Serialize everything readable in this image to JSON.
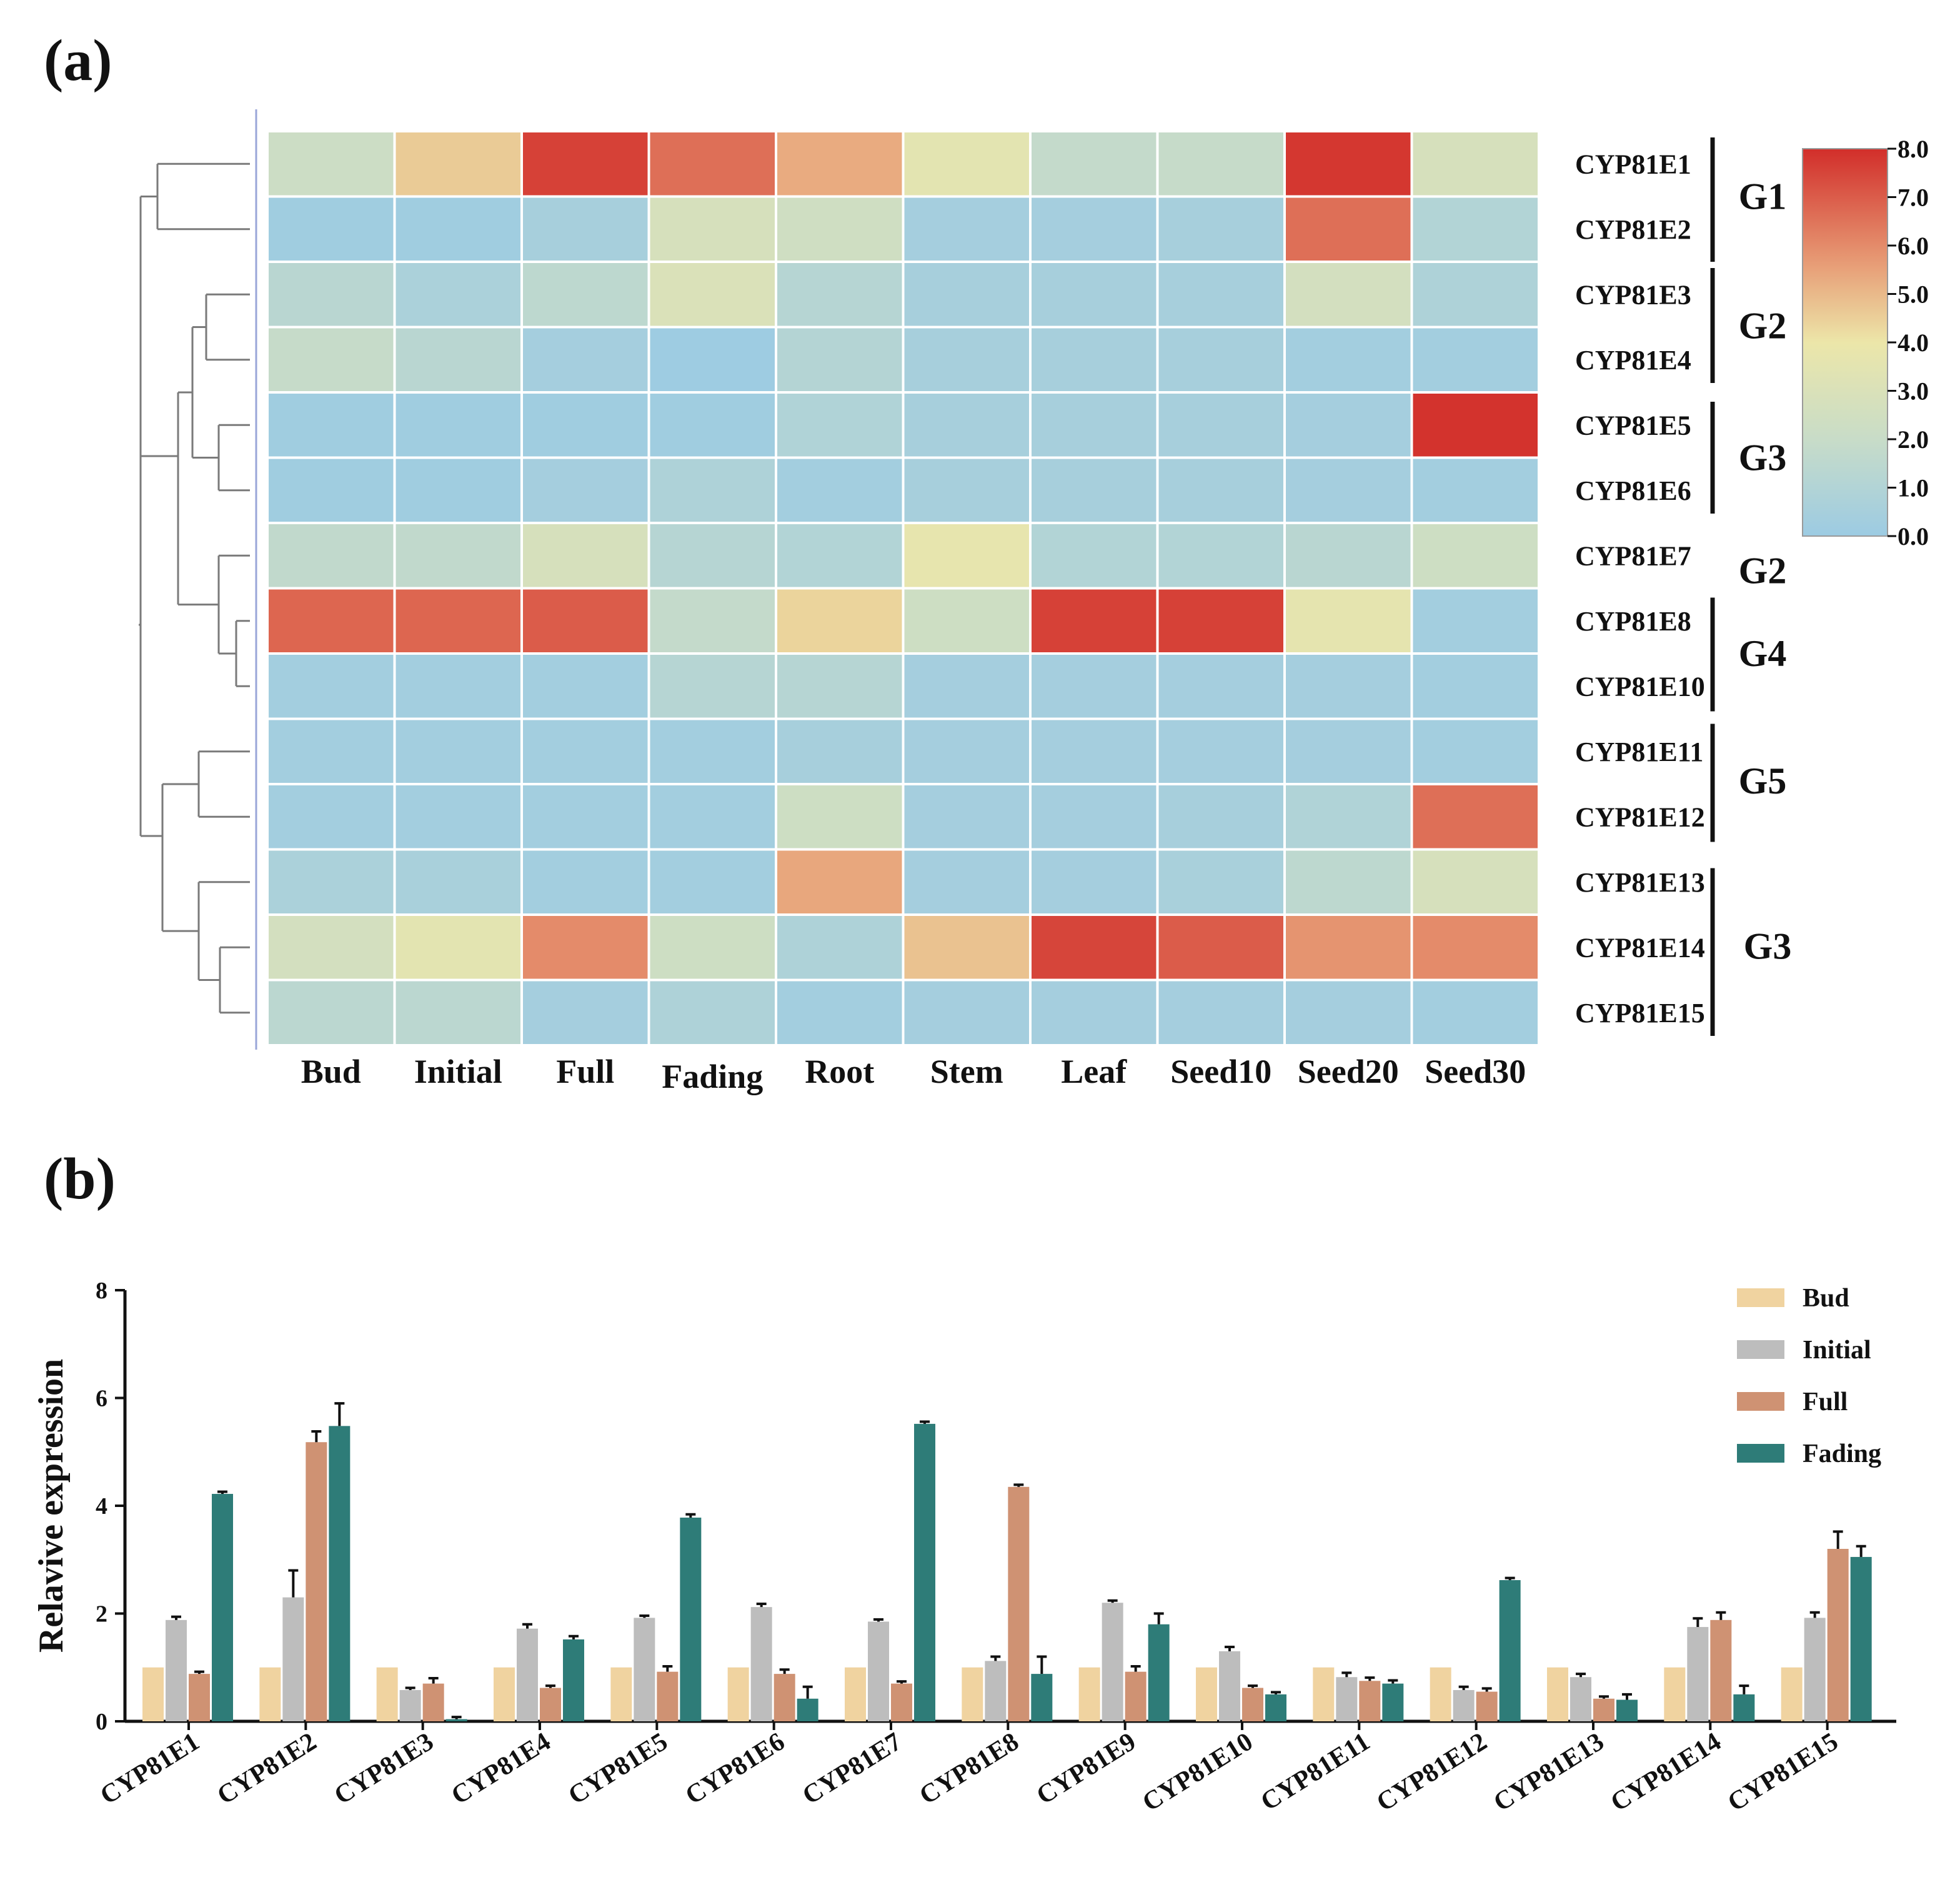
{
  "figure": {
    "panel_a_label": "(a)",
    "panel_b_label": "(b)"
  },
  "colors": {
    "bud": "#f0d3a0",
    "initial": "#bdbdbd",
    "full": "#cf9273",
    "fading": "#2e7c78",
    "dendro": "#7a7a7a",
    "heat_low": "#9ccbe3",
    "heat_mid": "#ece6a9",
    "heat_high": "#d22e2a"
  },
  "chart_data": [
    {
      "type": "heatmap",
      "title": "",
      "columns": [
        "Bud",
        "Initial",
        "Full",
        "Fading",
        "Root",
        "Stem",
        "Leaf",
        "Seed10",
        "Seed20",
        "Seed30"
      ],
      "rows": [
        "CYP81E1",
        "CYP81E2",
        "CYP81E3",
        "CYP81E4",
        "CYP81E5",
        "CYP81E6",
        "CYP81E7",
        "CYP81E8",
        "CYP81E10",
        "CYP81E11",
        "CYP81E12",
        "CYP81E13",
        "CYP81E14",
        "CYP81E15"
      ],
      "values": [
        [
          2.2,
          4.6,
          7.6,
          6.6,
          5.3,
          3.5,
          1.8,
          1.9,
          7.8,
          2.8
        ],
        [
          0.2,
          0.2,
          0.5,
          2.8,
          2.4,
          0.4,
          0.4,
          0.5,
          6.6,
          1.0
        ],
        [
          1.3,
          0.7,
          1.5,
          3.0,
          1.2,
          0.5,
          0.5,
          0.5,
          2.6,
          0.8
        ],
        [
          1.9,
          1.3,
          0.4,
          0.1,
          1.1,
          0.5,
          0.5,
          0.5,
          0.3,
          0.3
        ],
        [
          0.2,
          0.2,
          0.2,
          0.2,
          0.9,
          0.5,
          0.5,
          0.5,
          0.4,
          7.9
        ],
        [
          0.2,
          0.2,
          0.4,
          0.8,
          0.3,
          0.5,
          0.5,
          0.5,
          0.4,
          0.3
        ],
        [
          1.7,
          1.7,
          2.8,
          1.2,
          1.0,
          3.7,
          1.0,
          1.0,
          1.3,
          2.3
        ],
        [
          6.8,
          6.8,
          7.0,
          1.8,
          4.4,
          2.3,
          7.6,
          7.6,
          3.6,
          0.3
        ],
        [
          0.3,
          0.3,
          0.3,
          1.2,
          1.2,
          0.4,
          0.4,
          0.4,
          0.4,
          0.3
        ],
        [
          0.3,
          0.3,
          0.3,
          0.3,
          0.5,
          0.4,
          0.4,
          0.4,
          0.4,
          0.3
        ],
        [
          0.3,
          0.3,
          0.3,
          0.3,
          2.3,
          0.4,
          0.4,
          0.5,
          0.9,
          6.6
        ],
        [
          0.7,
          0.6,
          0.3,
          0.3,
          5.4,
          0.4,
          0.4,
          0.6,
          1.5,
          2.8
        ],
        [
          2.6,
          3.5,
          6.0,
          2.3,
          0.8,
          4.8,
          7.5,
          7.0,
          5.8,
          6.0
        ],
        [
          1.4,
          1.4,
          0.4,
          0.8,
          0.3,
          0.4,
          0.4,
          0.4,
          0.4,
          0.3
        ]
      ],
      "groups": [
        {
          "label": "G1",
          "rows": [
            "CYP81E1",
            "CYP81E2"
          ]
        },
        {
          "label": "G2",
          "rows": [
            "CYP81E3",
            "CYP81E4"
          ]
        },
        {
          "label": "G3",
          "rows": [
            "CYP81E5",
            "CYP81E6"
          ]
        },
        {
          "label": "G2",
          "rows": [
            "CYP81E7"
          ]
        },
        {
          "label": "G4",
          "rows": [
            "CYP81E8",
            "CYP81E10"
          ]
        },
        {
          "label": "G5",
          "rows": [
            "CYP81E11",
            "CYP81E12"
          ]
        },
        {
          "label": "G3",
          "rows": [
            "CYP81E13",
            "CYP81E14",
            "CYP81E15"
          ]
        }
      ],
      "colorbar": {
        "range": [
          0.0,
          8.0
        ],
        "ticks": [
          "0.0",
          "1.0",
          "2.0",
          "3.0",
          "4.0",
          "5.0",
          "6.0",
          "7.0",
          "8.0"
        ]
      },
      "dendrogram": "rows clustered: ((E1,E2),(((E3,E4),(E5,E6)),(E7,(E8,E10)))),((E11,E12),(E13,(E14,E15)))"
    },
    {
      "type": "bar",
      "title": "",
      "ylabel": "Relavive expression",
      "xlabel": "",
      "ylim": [
        0,
        8
      ],
      "yticks": [
        "0",
        "2",
        "4",
        "6",
        "8"
      ],
      "categories": [
        "CYP81E1",
        "CYP81E2",
        "CYP81E3",
        "CYP81E4",
        "CYP81E5",
        "CYP81E6",
        "CYP81E7",
        "CYP81E8",
        "CYP81E9",
        "CYP81E10",
        "CYP81E11",
        "CYP81E12",
        "CYP81E13",
        "CYP81E14",
        "CYP81E15"
      ],
      "legend_position": "top-right",
      "series": [
        {
          "name": "Bud",
          "values": [
            1,
            1,
            1,
            1,
            1,
            1,
            1,
            1,
            1,
            1,
            1,
            1,
            1,
            1,
            1
          ],
          "errors": [
            0,
            0,
            0,
            0,
            0,
            0,
            0,
            0,
            0,
            0,
            0,
            0,
            0,
            0,
            0
          ]
        },
        {
          "name": "Initial",
          "values": [
            1.88,
            2.3,
            0.58,
            1.72,
            1.92,
            2.12,
            1.85,
            1.12,
            2.2,
            1.3,
            0.82,
            0.58,
            0.82,
            1.75,
            1.92
          ],
          "errors": [
            0.06,
            0.5,
            0.04,
            0.08,
            0.04,
            0.06,
            0.04,
            0.08,
            0.04,
            0.08,
            0.08,
            0.06,
            0.06,
            0.16,
            0.1
          ]
        },
        {
          "name": "Full",
          "values": [
            0.88,
            5.18,
            0.7,
            0.62,
            0.92,
            0.88,
            0.7,
            4.35,
            0.92,
            0.62,
            0.75,
            0.55,
            0.42,
            1.88,
            3.2
          ],
          "errors": [
            0.04,
            0.2,
            0.1,
            0.04,
            0.1,
            0.08,
            0.04,
            0.04,
            0.1,
            0.04,
            0.06,
            0.06,
            0.04,
            0.14,
            0.32
          ]
        },
        {
          "name": "Fading",
          "values": [
            4.22,
            5.48,
            0.04,
            1.52,
            3.78,
            0.42,
            5.52,
            0.88,
            1.8,
            0.5,
            0.7,
            2.62,
            0.4,
            0.5,
            3.05
          ],
          "errors": [
            0.04,
            0.42,
            0.04,
            0.06,
            0.06,
            0.22,
            0.04,
            0.32,
            0.2,
            0.04,
            0.06,
            0.04,
            0.1,
            0.16,
            0.2
          ]
        }
      ]
    }
  ]
}
